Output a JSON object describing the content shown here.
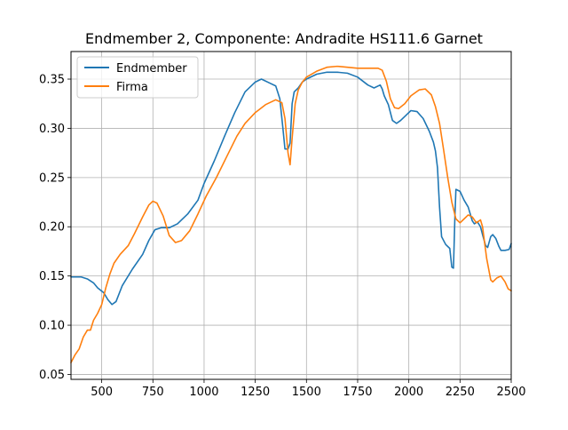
{
  "chart_data": {
    "type": "line",
    "title": "Endmember 2, Componente: Andradite HS111.6  Garnet",
    "xlabel": "",
    "ylabel": "",
    "xlim": [
      350,
      2500
    ],
    "ylim": [
      0.045,
      0.378
    ],
    "grid": true,
    "legend_position": "top-left",
    "x_ticks": [
      500,
      750,
      1000,
      1250,
      1500,
      1750,
      2000,
      2250,
      2500
    ],
    "y_ticks": [
      0.05,
      0.1,
      0.15,
      0.2,
      0.25,
      0.3,
      0.35
    ],
    "y_tick_labels": [
      "0.05",
      "0.10",
      "0.15",
      "0.20",
      "0.25",
      "0.30",
      "0.35"
    ],
    "series": [
      {
        "name": "Endmember",
        "color": "#1f77b4",
        "points": [
          [
            350,
            0.149
          ],
          [
            400,
            0.149
          ],
          [
            430,
            0.147
          ],
          [
            460,
            0.143
          ],
          [
            480,
            0.138
          ],
          [
            510,
            0.133
          ],
          [
            530,
            0.126
          ],
          [
            550,
            0.121
          ],
          [
            570,
            0.124
          ],
          [
            600,
            0.14
          ],
          [
            650,
            0.157
          ],
          [
            700,
            0.172
          ],
          [
            730,
            0.186
          ],
          [
            760,
            0.197
          ],
          [
            790,
            0.199
          ],
          [
            830,
            0.199
          ],
          [
            870,
            0.203
          ],
          [
            920,
            0.213
          ],
          [
            970,
            0.227
          ],
          [
            1000,
            0.244
          ],
          [
            1050,
            0.267
          ],
          [
            1100,
            0.292
          ],
          [
            1150,
            0.316
          ],
          [
            1200,
            0.337
          ],
          [
            1250,
            0.347
          ],
          [
            1280,
            0.35
          ],
          [
            1320,
            0.346
          ],
          [
            1350,
            0.343
          ],
          [
            1370,
            0.33
          ],
          [
            1385,
            0.3
          ],
          [
            1395,
            0.279
          ],
          [
            1410,
            0.279
          ],
          [
            1420,
            0.285
          ],
          [
            1430,
            0.325
          ],
          [
            1440,
            0.337
          ],
          [
            1460,
            0.341
          ],
          [
            1480,
            0.347
          ],
          [
            1500,
            0.35
          ],
          [
            1550,
            0.355
          ],
          [
            1600,
            0.357
          ],
          [
            1650,
            0.357
          ],
          [
            1700,
            0.356
          ],
          [
            1750,
            0.352
          ],
          [
            1800,
            0.344
          ],
          [
            1830,
            0.341
          ],
          [
            1860,
            0.344
          ],
          [
            1870,
            0.34
          ],
          [
            1880,
            0.333
          ],
          [
            1900,
            0.324
          ],
          [
            1920,
            0.308
          ],
          [
            1940,
            0.305
          ],
          [
            1960,
            0.308
          ],
          [
            1990,
            0.314
          ],
          [
            2010,
            0.318
          ],
          [
            2040,
            0.317
          ],
          [
            2070,
            0.31
          ],
          [
            2100,
            0.297
          ],
          [
            2120,
            0.286
          ],
          [
            2130,
            0.277
          ],
          [
            2140,
            0.26
          ],
          [
            2150,
            0.22
          ],
          [
            2160,
            0.19
          ],
          [
            2180,
            0.182
          ],
          [
            2200,
            0.178
          ],
          [
            2210,
            0.159
          ],
          [
            2218,
            0.158
          ],
          [
            2225,
            0.21
          ],
          [
            2230,
            0.238
          ],
          [
            2250,
            0.236
          ],
          [
            2270,
            0.227
          ],
          [
            2290,
            0.22
          ],
          [
            2310,
            0.206
          ],
          [
            2320,
            0.203
          ],
          [
            2335,
            0.205
          ],
          [
            2350,
            0.2
          ],
          [
            2360,
            0.192
          ],
          [
            2375,
            0.181
          ],
          [
            2385,
            0.179
          ],
          [
            2400,
            0.19
          ],
          [
            2410,
            0.192
          ],
          [
            2425,
            0.188
          ],
          [
            2440,
            0.18
          ],
          [
            2450,
            0.176
          ],
          [
            2470,
            0.176
          ],
          [
            2490,
            0.177
          ],
          [
            2500,
            0.183
          ]
        ]
      },
      {
        "name": "Firma",
        "color": "#ff7f0e",
        "points": [
          [
            350,
            0.062
          ],
          [
            370,
            0.07
          ],
          [
            390,
            0.076
          ],
          [
            410,
            0.088
          ],
          [
            430,
            0.095
          ],
          [
            445,
            0.095
          ],
          [
            460,
            0.105
          ],
          [
            480,
            0.112
          ],
          [
            500,
            0.121
          ],
          [
            520,
            0.138
          ],
          [
            540,
            0.152
          ],
          [
            560,
            0.163
          ],
          [
            590,
            0.172
          ],
          [
            630,
            0.181
          ],
          [
            660,
            0.193
          ],
          [
            700,
            0.21
          ],
          [
            730,
            0.222
          ],
          [
            750,
            0.226
          ],
          [
            770,
            0.224
          ],
          [
            800,
            0.211
          ],
          [
            830,
            0.191
          ],
          [
            860,
            0.184
          ],
          [
            890,
            0.186
          ],
          [
            930,
            0.196
          ],
          [
            970,
            0.213
          ],
          [
            1010,
            0.231
          ],
          [
            1060,
            0.25
          ],
          [
            1110,
            0.271
          ],
          [
            1160,
            0.292
          ],
          [
            1200,
            0.305
          ],
          [
            1250,
            0.316
          ],
          [
            1300,
            0.324
          ],
          [
            1350,
            0.329
          ],
          [
            1380,
            0.326
          ],
          [
            1395,
            0.31
          ],
          [
            1410,
            0.275
          ],
          [
            1420,
            0.263
          ],
          [
            1430,
            0.29
          ],
          [
            1445,
            0.325
          ],
          [
            1460,
            0.339
          ],
          [
            1480,
            0.347
          ],
          [
            1500,
            0.352
          ],
          [
            1550,
            0.358
          ],
          [
            1600,
            0.362
          ],
          [
            1650,
            0.363
          ],
          [
            1700,
            0.362
          ],
          [
            1750,
            0.361
          ],
          [
            1800,
            0.361
          ],
          [
            1850,
            0.361
          ],
          [
            1870,
            0.359
          ],
          [
            1890,
            0.348
          ],
          [
            1910,
            0.33
          ],
          [
            1930,
            0.321
          ],
          [
            1950,
            0.32
          ],
          [
            1980,
            0.325
          ],
          [
            2010,
            0.333
          ],
          [
            2050,
            0.339
          ],
          [
            2080,
            0.34
          ],
          [
            2110,
            0.334
          ],
          [
            2130,
            0.322
          ],
          [
            2150,
            0.305
          ],
          [
            2170,
            0.278
          ],
          [
            2190,
            0.25
          ],
          [
            2210,
            0.225
          ],
          [
            2230,
            0.208
          ],
          [
            2250,
            0.204
          ],
          [
            2270,
            0.208
          ],
          [
            2290,
            0.212
          ],
          [
            2310,
            0.21
          ],
          [
            2330,
            0.204
          ],
          [
            2350,
            0.207
          ],
          [
            2360,
            0.2
          ],
          [
            2380,
            0.168
          ],
          [
            2400,
            0.146
          ],
          [
            2410,
            0.144
          ],
          [
            2430,
            0.148
          ],
          [
            2450,
            0.15
          ],
          [
            2470,
            0.144
          ],
          [
            2485,
            0.137
          ],
          [
            2500,
            0.135
          ]
        ]
      }
    ]
  }
}
